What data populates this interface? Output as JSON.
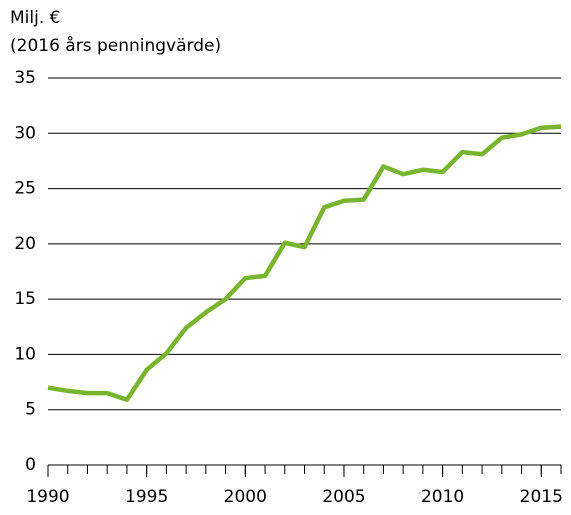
{
  "chart_data": {
    "type": "line",
    "y_label_lines": [
      "Milj. €",
      "(2016 års penningvärde)"
    ],
    "x": [
      1990,
      1991,
      1992,
      1993,
      1994,
      1995,
      1996,
      1997,
      1998,
      1999,
      2000,
      2001,
      2002,
      2003,
      2004,
      2005,
      2006,
      2007,
      2008,
      2009,
      2010,
      2011,
      2012,
      2013,
      2014,
      2015,
      2016
    ],
    "series": [
      {
        "color": "#78b52f",
        "values": [
          7.0,
          6.7,
          6.5,
          6.5,
          5.9,
          8.6,
          10.1,
          12.4,
          13.8,
          15.0,
          16.9,
          17.1,
          20.1,
          19.7,
          23.3,
          23.9,
          24.0,
          27.0,
          26.3,
          26.7,
          26.5,
          28.3,
          28.1,
          29.6,
          29.9,
          30.5,
          30.6
        ]
      }
    ],
    "xlim": [
      1990,
      2016
    ],
    "xticks": [
      1990,
      1995,
      2000,
      2005,
      2010,
      2015
    ],
    "ylim": [
      0,
      35
    ],
    "yticks": [
      0,
      5,
      10,
      15,
      20,
      25,
      30,
      35
    ],
    "grid": true
  }
}
